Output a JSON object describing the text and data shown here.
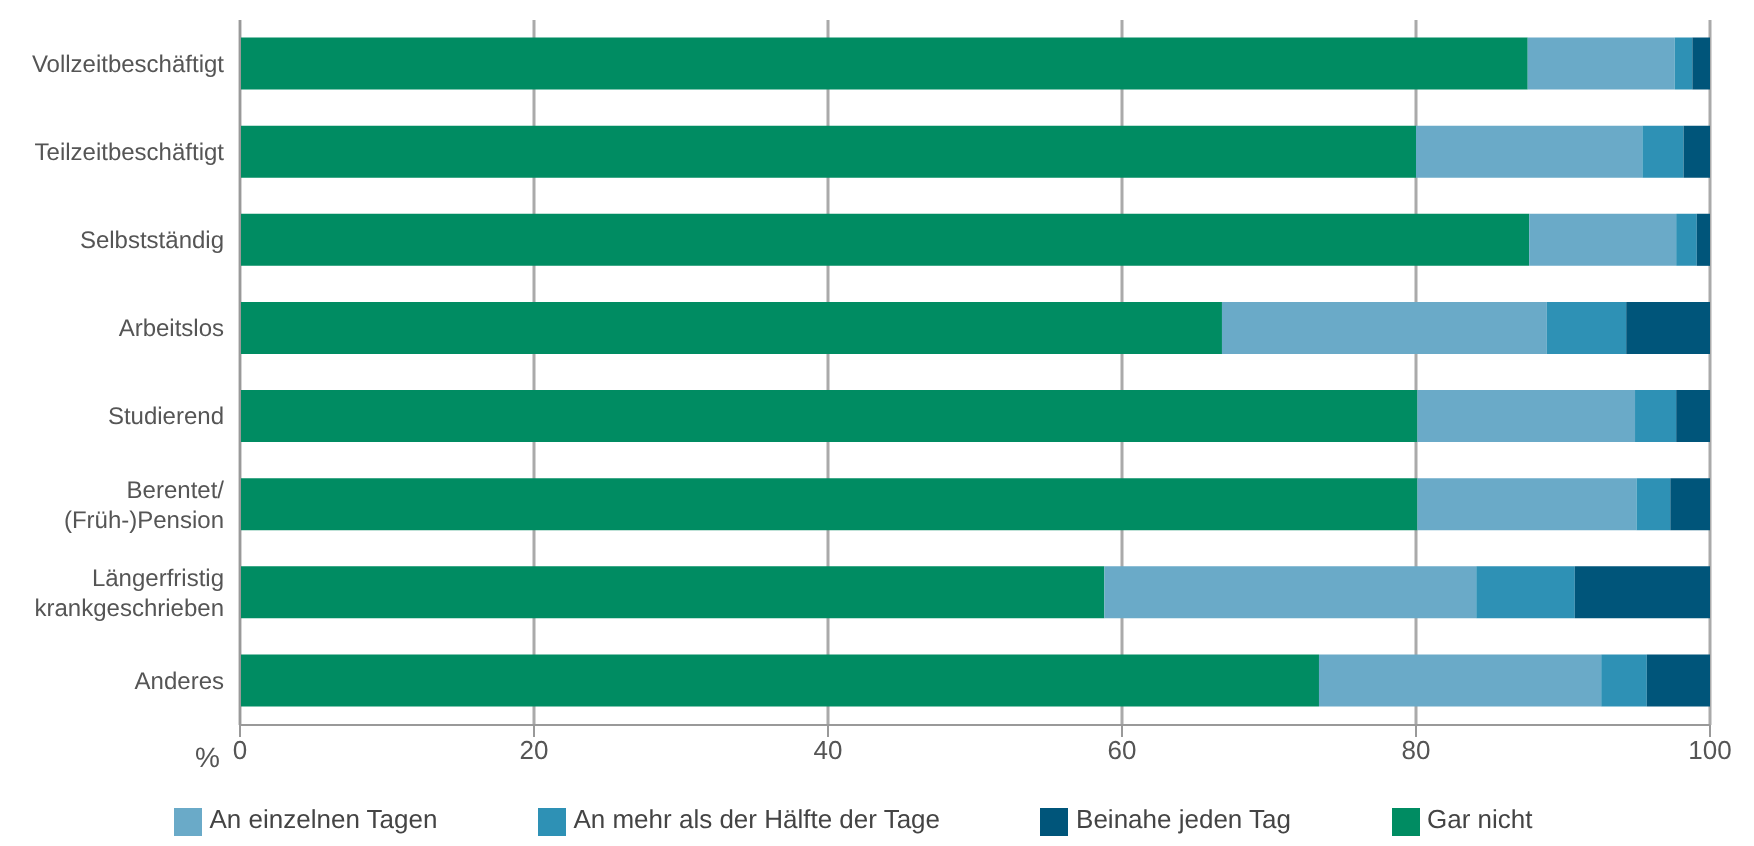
{
  "chart_data": {
    "type": "bar",
    "orientation": "horizontal",
    "stacked": true,
    "xlabel": "%",
    "categories": [
      "Vollzeitbeschäftigt",
      "Teilzeitbeschäftigt",
      "Selbstständig",
      "Arbeitslos",
      "Studierend",
      "Berentet/\n(Früh-)Pension",
      "Längerfristig\nkrankgeschrieben",
      "Anderes"
    ],
    "series": [
      {
        "name": "Gar nicht",
        "color": "#008c62",
        "values": [
          87.6,
          80.0,
          87.7,
          66.8,
          80.1,
          80.1,
          58.8,
          73.4
        ]
      },
      {
        "name": "An einzelnen Tagen",
        "color": "#6aaac8",
        "values": [
          10.0,
          15.4,
          10.0,
          22.1,
          14.8,
          14.9,
          25.3,
          19.2
        ]
      },
      {
        "name": "An mehr als der Hälfte der Tage",
        "color": "#2e91b5",
        "values": [
          1.2,
          2.8,
          1.4,
          5.4,
          2.8,
          2.3,
          6.7,
          3.1
        ]
      },
      {
        "name": "Beinahe jeden Tag",
        "color": "#00557a",
        "values": [
          1.2,
          1.8,
          0.9,
          5.7,
          2.3,
          2.7,
          9.2,
          4.3
        ]
      }
    ],
    "xlim": [
      0,
      100
    ],
    "xticks": [
      0,
      20,
      40,
      60,
      80,
      100
    ],
    "grid": "x",
    "legend": "bottom"
  }
}
